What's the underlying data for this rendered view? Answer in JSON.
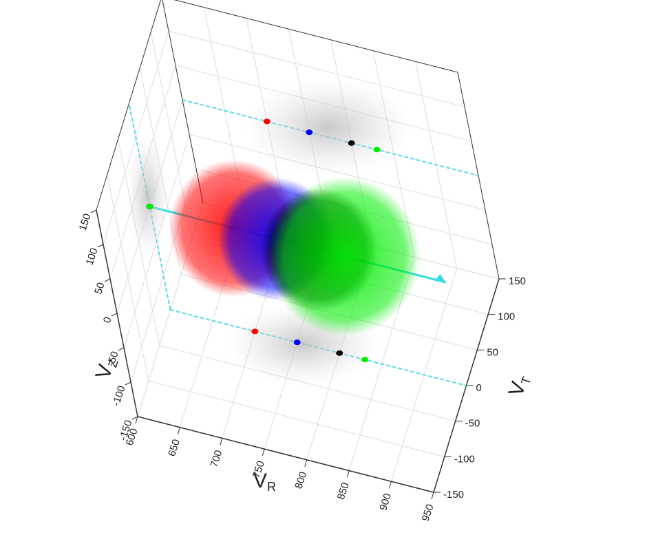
{
  "chart_data": {
    "type": "scatter3d",
    "xlabel": {
      "main": "V",
      "sub": "R"
    },
    "ylabel": {
      "main": "V",
      "sub": "T"
    },
    "zlabel": {
      "main": "V",
      "sub": "Z"
    },
    "xlim": [
      600,
      950
    ],
    "xticks": [
      600,
      650,
      700,
      750,
      800,
      850,
      900,
      950
    ],
    "ylim": [
      -150,
      150
    ],
    "yticks": [
      -150,
      -100,
      -50,
      0,
      50,
      100,
      150
    ],
    "zlim": [
      -150,
      150
    ],
    "zticks": [
      -150,
      -100,
      -50,
      0,
      50,
      100,
      150
    ],
    "grid": true,
    "series": [
      {
        "color": "#ff0000",
        "x": [
          700
        ],
        "y": [
          0
        ],
        "z": [
          0
        ]
      },
      {
        "color": "#0000ff",
        "x": [
          750
        ],
        "y": [
          0
        ],
        "z": [
          0
        ]
      },
      {
        "color": "#000000",
        "x": [
          800
        ],
        "y": [
          0
        ],
        "z": [
          0
        ]
      },
      {
        "color": "#00ee00",
        "x": [
          830
        ],
        "y": [
          0
        ],
        "z": [
          0
        ]
      }
    ]
  }
}
